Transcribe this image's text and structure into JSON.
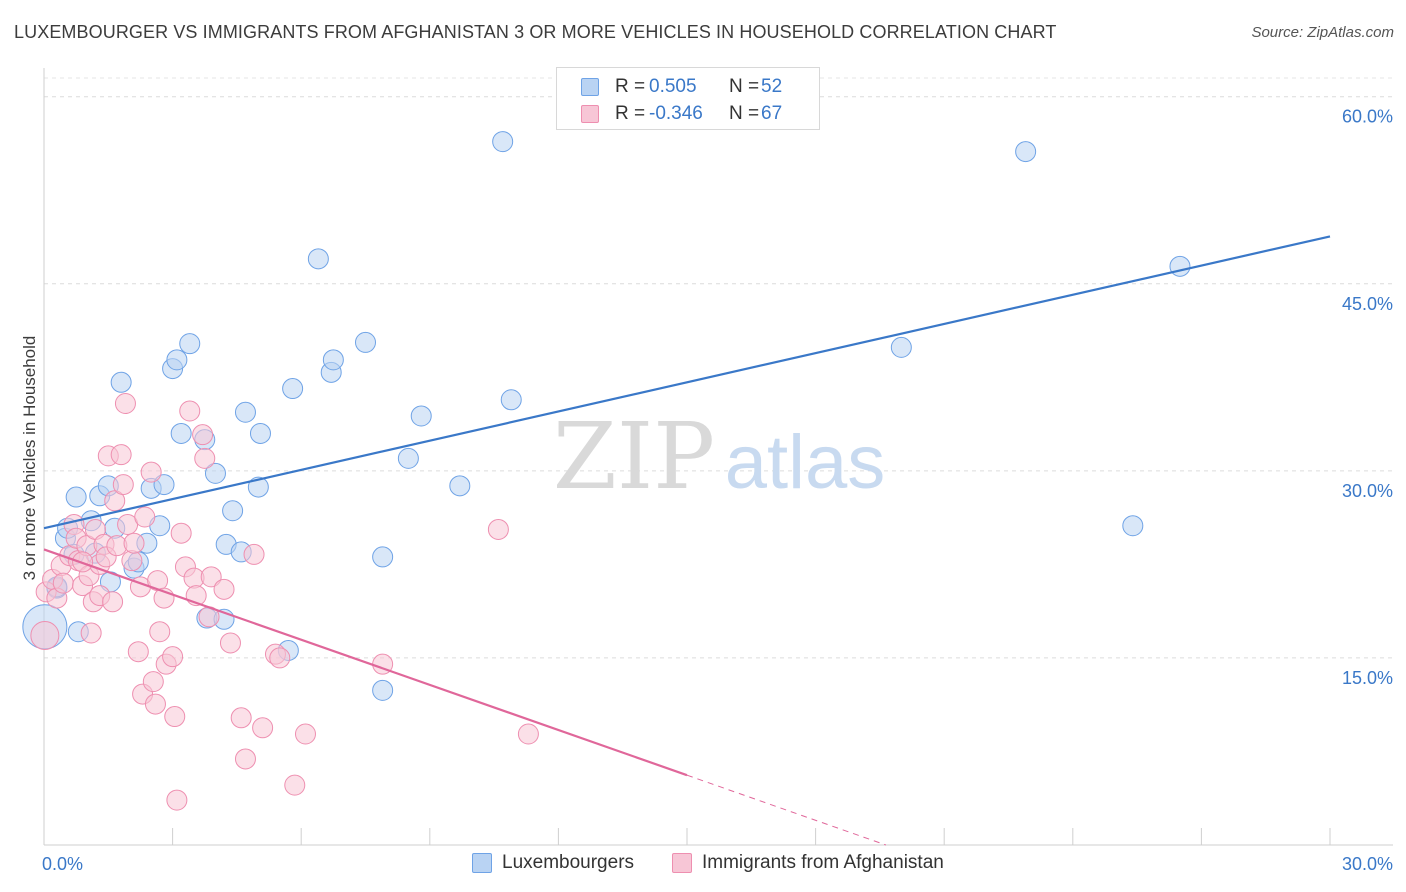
{
  "title": "LUXEMBOURGER VS IMMIGRANTS FROM AFGHANISTAN 3 OR MORE VEHICLES IN HOUSEHOLD CORRELATION CHART",
  "source": "Source: ZipAtlas.com",
  "watermark": {
    "zip": "ZIP",
    "atlas": "atlas"
  },
  "legend": {
    "rows": [
      {
        "r_label": "R =",
        "r_value": "0.505",
        "n_label": "N =",
        "n_value": "52",
        "color": "#6fa3e6",
        "fill": "#b9d3f3"
      },
      {
        "r_label": "R =",
        "r_value": "-0.346",
        "n_label": "N =",
        "n_value": "67",
        "color": "#ee8fb0",
        "fill": "#f7c6d6"
      }
    ]
  },
  "bottom_legend": [
    {
      "label": "Luxembourgers",
      "color": "#6fa3e6",
      "fill": "#b9d3f3"
    },
    {
      "label": "Immigrants from Afghanistan",
      "color": "#ee8fb0",
      "fill": "#f7c6d6"
    }
  ],
  "chart_data": {
    "type": "scatter",
    "title": "LUXEMBOURGER VS IMMIGRANTS FROM AFGHANISTAN 3 OR MORE VEHICLES IN HOUSEHOLD CORRELATION CHART",
    "xlabel": "",
    "ylabel": "3 or more Vehicles in Household",
    "xlim": [
      0,
      30
    ],
    "ylim": [
      0,
      61.5
    ],
    "x_tick_labels": [
      "0.0%",
      "30.0%"
    ],
    "y_ticks": [
      15,
      30,
      45,
      60
    ],
    "y_tick_labels": [
      "15.0%",
      "30.0%",
      "45.0%",
      "60.0%"
    ],
    "grid": "horizontal dashed",
    "legend_position": "top-center",
    "series": [
      {
        "name": "Luxembourgers",
        "color": "#3a78c8",
        "fill": "#b9d3f3",
        "trend": {
          "x": [
            0,
            30
          ],
          "y": [
            25.4,
            48.8
          ],
          "dashed_from": null
        },
        "points": [
          [
            0.02,
            17.5,
            22
          ],
          [
            0.3,
            20.6,
            10
          ],
          [
            0.5,
            24.6,
            10
          ],
          [
            0.55,
            25.4,
            10
          ],
          [
            0.7,
            23.3,
            10
          ],
          [
            0.75,
            27.9,
            10
          ],
          [
            0.8,
            17.1,
            10
          ],
          [
            1.1,
            26.0,
            10
          ],
          [
            1.2,
            23.4,
            10
          ],
          [
            1.3,
            28.0,
            10
          ],
          [
            1.5,
            28.8,
            10
          ],
          [
            1.55,
            21.1,
            10
          ],
          [
            1.65,
            25.4,
            10
          ],
          [
            1.8,
            37.1,
            10
          ],
          [
            2.1,
            22.2,
            10
          ],
          [
            2.2,
            22.7,
            10
          ],
          [
            2.4,
            24.2,
            10
          ],
          [
            2.5,
            28.6,
            10
          ],
          [
            2.7,
            25.6,
            10
          ],
          [
            2.8,
            28.9,
            10
          ],
          [
            3.0,
            38.2,
            10
          ],
          [
            3.1,
            38.9,
            10
          ],
          [
            3.2,
            33.0,
            10
          ],
          [
            3.4,
            40.2,
            10
          ],
          [
            3.75,
            32.5,
            10
          ],
          [
            3.8,
            18.2,
            10
          ],
          [
            4.0,
            29.8,
            10
          ],
          [
            4.2,
            18.1,
            10
          ],
          [
            4.25,
            24.1,
            10
          ],
          [
            4.4,
            26.8,
            10
          ],
          [
            4.6,
            23.5,
            10
          ],
          [
            4.7,
            34.7,
            10
          ],
          [
            5.0,
            28.7,
            10
          ],
          [
            5.05,
            33.0,
            10
          ],
          [
            5.7,
            15.6,
            10
          ],
          [
            5.8,
            36.6,
            10
          ],
          [
            6.4,
            47.0,
            10
          ],
          [
            6.7,
            37.9,
            10
          ],
          [
            6.75,
            38.9,
            10
          ],
          [
            7.5,
            40.3,
            10
          ],
          [
            7.9,
            23.1,
            10
          ],
          [
            7.9,
            12.4,
            10
          ],
          [
            8.5,
            31.0,
            10
          ],
          [
            8.8,
            34.4,
            10
          ],
          [
            9.7,
            28.8,
            10
          ],
          [
            10.7,
            56.4,
            10
          ],
          [
            10.9,
            35.7,
            10
          ],
          [
            20.0,
            39.9,
            10
          ],
          [
            22.9,
            55.6,
            10
          ],
          [
            25.4,
            25.6,
            10
          ],
          [
            26.5,
            46.4,
            10
          ],
          [
            0.3,
            20.7,
            10
          ]
        ]
      },
      {
        "name": "Immigrants from Afghanistan",
        "color": "#e0679a",
        "fill": "#f7c6d6",
        "trend": {
          "x": [
            0,
            30
          ],
          "y": [
            23.7,
            -12.5
          ],
          "dashed_from": 15
        },
        "points": [
          [
            0.02,
            16.8,
            14
          ],
          [
            0.05,
            20.3,
            10
          ],
          [
            0.2,
            21.3,
            10
          ],
          [
            0.3,
            19.8,
            10
          ],
          [
            0.4,
            22.4,
            10
          ],
          [
            0.45,
            21.0,
            10
          ],
          [
            0.6,
            23.2,
            10
          ],
          [
            0.7,
            25.7,
            10
          ],
          [
            0.75,
            24.6,
            10
          ],
          [
            0.8,
            22.8,
            10
          ],
          [
            0.9,
            20.8,
            10
          ],
          [
            1.0,
            24.0,
            10
          ],
          [
            1.05,
            21.6,
            10
          ],
          [
            1.1,
            17.0,
            10
          ],
          [
            1.15,
            19.5,
            10
          ],
          [
            1.2,
            25.3,
            10
          ],
          [
            1.3,
            22.5,
            10
          ],
          [
            1.3,
            20.0,
            10
          ],
          [
            1.4,
            24.1,
            10
          ],
          [
            1.45,
            23.1,
            10
          ],
          [
            1.5,
            31.2,
            10
          ],
          [
            1.6,
            19.5,
            10
          ],
          [
            1.65,
            27.6,
            10
          ],
          [
            1.7,
            24.0,
            10
          ],
          [
            1.8,
            31.3,
            10
          ],
          [
            1.85,
            28.9,
            10
          ],
          [
            1.9,
            35.4,
            10
          ],
          [
            1.95,
            25.7,
            10
          ],
          [
            2.05,
            22.8,
            10
          ],
          [
            2.1,
            24.2,
            10
          ],
          [
            2.2,
            15.5,
            10
          ],
          [
            2.25,
            20.7,
            10
          ],
          [
            2.3,
            12.1,
            10
          ],
          [
            2.35,
            26.3,
            10
          ],
          [
            2.5,
            29.9,
            10
          ],
          [
            2.55,
            13.1,
            10
          ],
          [
            2.6,
            11.3,
            10
          ],
          [
            2.65,
            21.2,
            10
          ],
          [
            2.7,
            17.1,
            10
          ],
          [
            2.8,
            19.8,
            10
          ],
          [
            2.85,
            14.5,
            10
          ],
          [
            3.0,
            15.1,
            10
          ],
          [
            3.05,
            10.3,
            10
          ],
          [
            3.1,
            3.6,
            10
          ],
          [
            3.2,
            25.0,
            10
          ],
          [
            3.3,
            22.3,
            10
          ],
          [
            3.4,
            34.8,
            10
          ],
          [
            3.5,
            21.4,
            10
          ],
          [
            3.55,
            20.0,
            10
          ],
          [
            3.7,
            32.9,
            10
          ],
          [
            3.75,
            31.0,
            10
          ],
          [
            3.85,
            18.3,
            10
          ],
          [
            3.9,
            21.5,
            10
          ],
          [
            4.2,
            20.5,
            10
          ],
          [
            4.35,
            16.2,
            10
          ],
          [
            4.6,
            10.2,
            10
          ],
          [
            4.7,
            6.9,
            10
          ],
          [
            4.9,
            23.3,
            10
          ],
          [
            5.1,
            9.4,
            10
          ],
          [
            5.4,
            15.3,
            10
          ],
          [
            5.5,
            15.0,
            10
          ],
          [
            5.85,
            4.8,
            10
          ],
          [
            6.1,
            8.9,
            10
          ],
          [
            7.9,
            14.5,
            10
          ],
          [
            10.6,
            25.3,
            10
          ],
          [
            11.3,
            8.9,
            10
          ],
          [
            0.9,
            22.7,
            10
          ]
        ]
      }
    ]
  }
}
